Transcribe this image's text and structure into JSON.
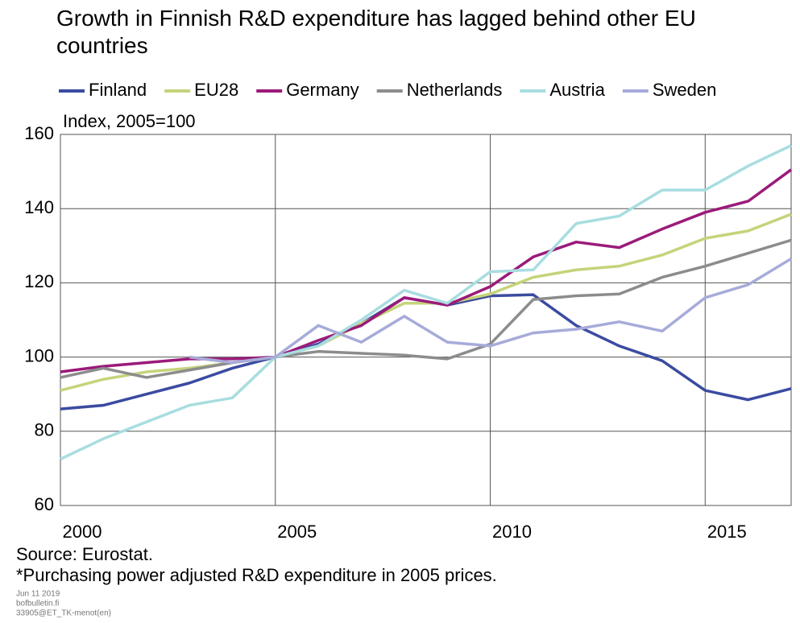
{
  "chart_data": {
    "type": "line",
    "title": "Growth in Finnish R&D expenditure has lagged behind other EU countries",
    "ylabel": "Index, 2005=100",
    "x": [
      2000,
      2001,
      2002,
      2003,
      2004,
      2005,
      2006,
      2007,
      2008,
      2009,
      2010,
      2011,
      2012,
      2013,
      2014,
      2015,
      2016,
      2017
    ],
    "series": [
      {
        "name": "Finland",
        "color": "#3b4ba0",
        "values": [
          86,
          87,
          90,
          93,
          97,
          100,
          103.5,
          109,
          116,
          114,
          116.5,
          116.8,
          108.5,
          103,
          99,
          91,
          88.5,
          91.5
        ]
      },
      {
        "name": "EU28",
        "color": "#c4d47a",
        "values": [
          91,
          94,
          96,
          97,
          98.5,
          100,
          103,
          109,
          114.5,
          114.5,
          117,
          121.5,
          123.5,
          124.5,
          127.5,
          132,
          134,
          138.5
        ]
      },
      {
        "name": "Germany",
        "color": "#9b1a7a",
        "values": [
          96,
          97.5,
          98.5,
          99.5,
          99.5,
          100,
          104.5,
          108.5,
          116,
          114,
          119,
          127,
          131,
          129.5,
          134.5,
          139,
          142,
          150.5
        ]
      },
      {
        "name": "Netherlands",
        "color": "#8c8c8c",
        "values": [
          94.5,
          97,
          94.5,
          96.5,
          98.5,
          100,
          101.5,
          101,
          100.5,
          99.5,
          103.5,
          115.5,
          116.5,
          117,
          121.5,
          124.5,
          128,
          131.5
        ]
      },
      {
        "name": "Austria",
        "color": "#a8dde0",
        "values": [
          72.5,
          78,
          82.5,
          87,
          89,
          100,
          103,
          110,
          118,
          114.5,
          123,
          123.5,
          136,
          138,
          145,
          145,
          151.5,
          157
        ]
      },
      {
        "name": "Sweden",
        "color": "#a7abd9",
        "values": [
          null,
          null,
          null,
          100,
          98.5,
          100,
          108.5,
          104,
          111,
          104,
          103,
          106.5,
          107.5,
          109.5,
          107,
          116,
          119.5,
          126.5
        ]
      }
    ],
    "xlim": [
      2000,
      2017
    ],
    "xticks": [
      2000,
      2005,
      2010,
      2015
    ],
    "ylim": [
      60,
      160
    ],
    "yticks": [
      60,
      80,
      100,
      120,
      140,
      160
    ],
    "grid": true,
    "source": "Source: Eurostat.",
    "footnote": "*Purchasing power adjusted R&D expenditure in 2005 prices.",
    "meta": [
      "Jun 11 2019",
      "bofbulletin.fi",
      "33905@ET_TK-menot(en)"
    ]
  }
}
